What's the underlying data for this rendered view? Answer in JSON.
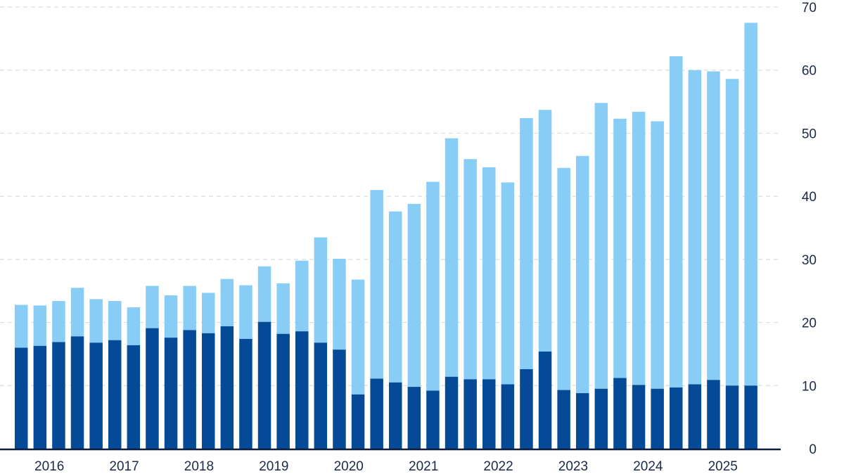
{
  "chart_data": {
    "type": "bar",
    "stacked": true,
    "title": "",
    "xlabel": "",
    "ylabel": "",
    "ylim": [
      0,
      70
    ],
    "y_ticks": [
      "0",
      "10",
      "20",
      "30",
      "40",
      "50",
      "60",
      "70"
    ],
    "grid": "horizontal dashed",
    "y_axis_position": "right",
    "x_year_labels": [
      "2016",
      "2017",
      "2018",
      "2019",
      "2020",
      "2021",
      "2022",
      "2023",
      "2024",
      "2025"
    ],
    "x_year_label_positions": [
      1.5,
      5.5,
      9.5,
      13.5,
      17.5,
      21.5,
      25.5,
      29.5,
      33.5,
      37.5
    ],
    "colors": {
      "lower": "#054a96",
      "upper": "#88cdf6"
    },
    "series": [
      {
        "values": [
          16.0,
          16.3,
          16.9,
          17.8,
          16.8,
          17.2,
          16.4,
          19.1,
          17.6,
          18.8,
          18.3,
          19.4,
          17.4,
          20.1,
          18.2,
          18.6,
          16.8,
          15.7,
          8.6,
          11.1,
          10.5,
          9.8,
          9.2,
          11.4,
          11.0,
          11.0,
          10.2,
          12.6,
          15.4,
          9.3,
          8.8,
          9.5,
          11.2,
          10.1,
          9.5,
          9.7,
          10.2,
          10.9,
          10.0,
          10.0
        ]
      },
      {
        "values": [
          6.8,
          6.4,
          6.5,
          7.7,
          6.9,
          6.2,
          6.0,
          6.7,
          6.7,
          7.0,
          6.4,
          7.5,
          8.5,
          8.8,
          8.0,
          11.2,
          16.7,
          14.4,
          18.2,
          29.9,
          27.1,
          29.0,
          33.1,
          37.8,
          34.9,
          33.6,
          32.0,
          39.8,
          38.3,
          35.2,
          37.6,
          45.3,
          41.1,
          43.3,
          42.4,
          52.5,
          49.8,
          48.9,
          48.6,
          57.5
        ]
      }
    ]
  }
}
